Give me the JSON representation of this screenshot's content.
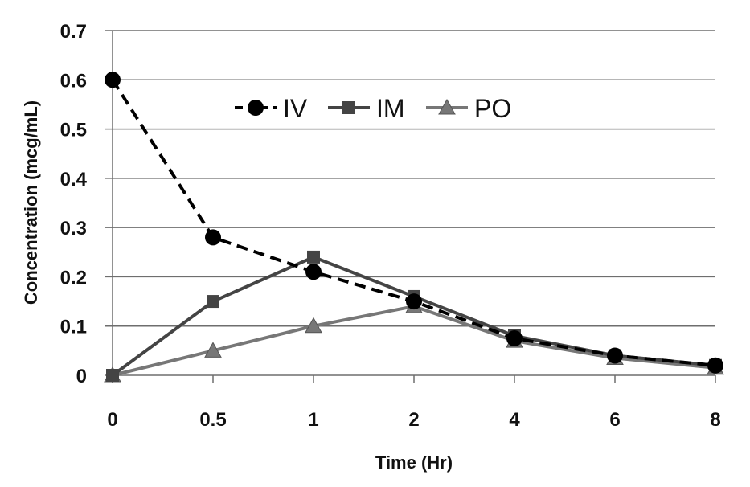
{
  "chart_data": {
    "type": "line",
    "title": "",
    "xlabel": "Time (Hr)",
    "ylabel": "Concentration (mcg/mL)",
    "categories": [
      "0",
      "0.5",
      "1",
      "2",
      "4",
      "6",
      "8"
    ],
    "ylim": [
      0,
      0.7
    ],
    "yticks": [
      "0",
      "0.1",
      "0.2",
      "0.3",
      "0.4",
      "0.5",
      "0.6",
      "0.7"
    ],
    "grid": true,
    "legend_position": "top-center",
    "series": [
      {
        "name": "IV",
        "marker": "circle",
        "line": "dashed",
        "color": "#000000",
        "values": [
          0.6,
          0.28,
          0.21,
          0.15,
          0.075,
          0.04,
          0.02
        ]
      },
      {
        "name": "IM",
        "marker": "square",
        "line": "solid",
        "color": "#444444",
        "values": [
          0,
          0.15,
          0.24,
          0.16,
          0.08,
          0.04,
          0.02
        ]
      },
      {
        "name": "PO",
        "marker": "triangle",
        "line": "solid",
        "color": "#777777",
        "values": [
          0,
          0.05,
          0.1,
          0.14,
          0.07,
          0.035,
          0.015
        ]
      }
    ]
  }
}
